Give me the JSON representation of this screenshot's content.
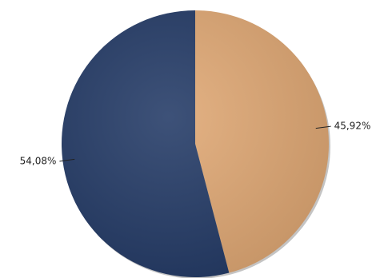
{
  "chart_data": {
    "type": "pie",
    "values": [
      45.92,
      54.08
    ],
    "value_labels": [
      "45,92%",
      "54,08%"
    ],
    "colors": [
      "#e0a874",
      "#233a66"
    ]
  }
}
